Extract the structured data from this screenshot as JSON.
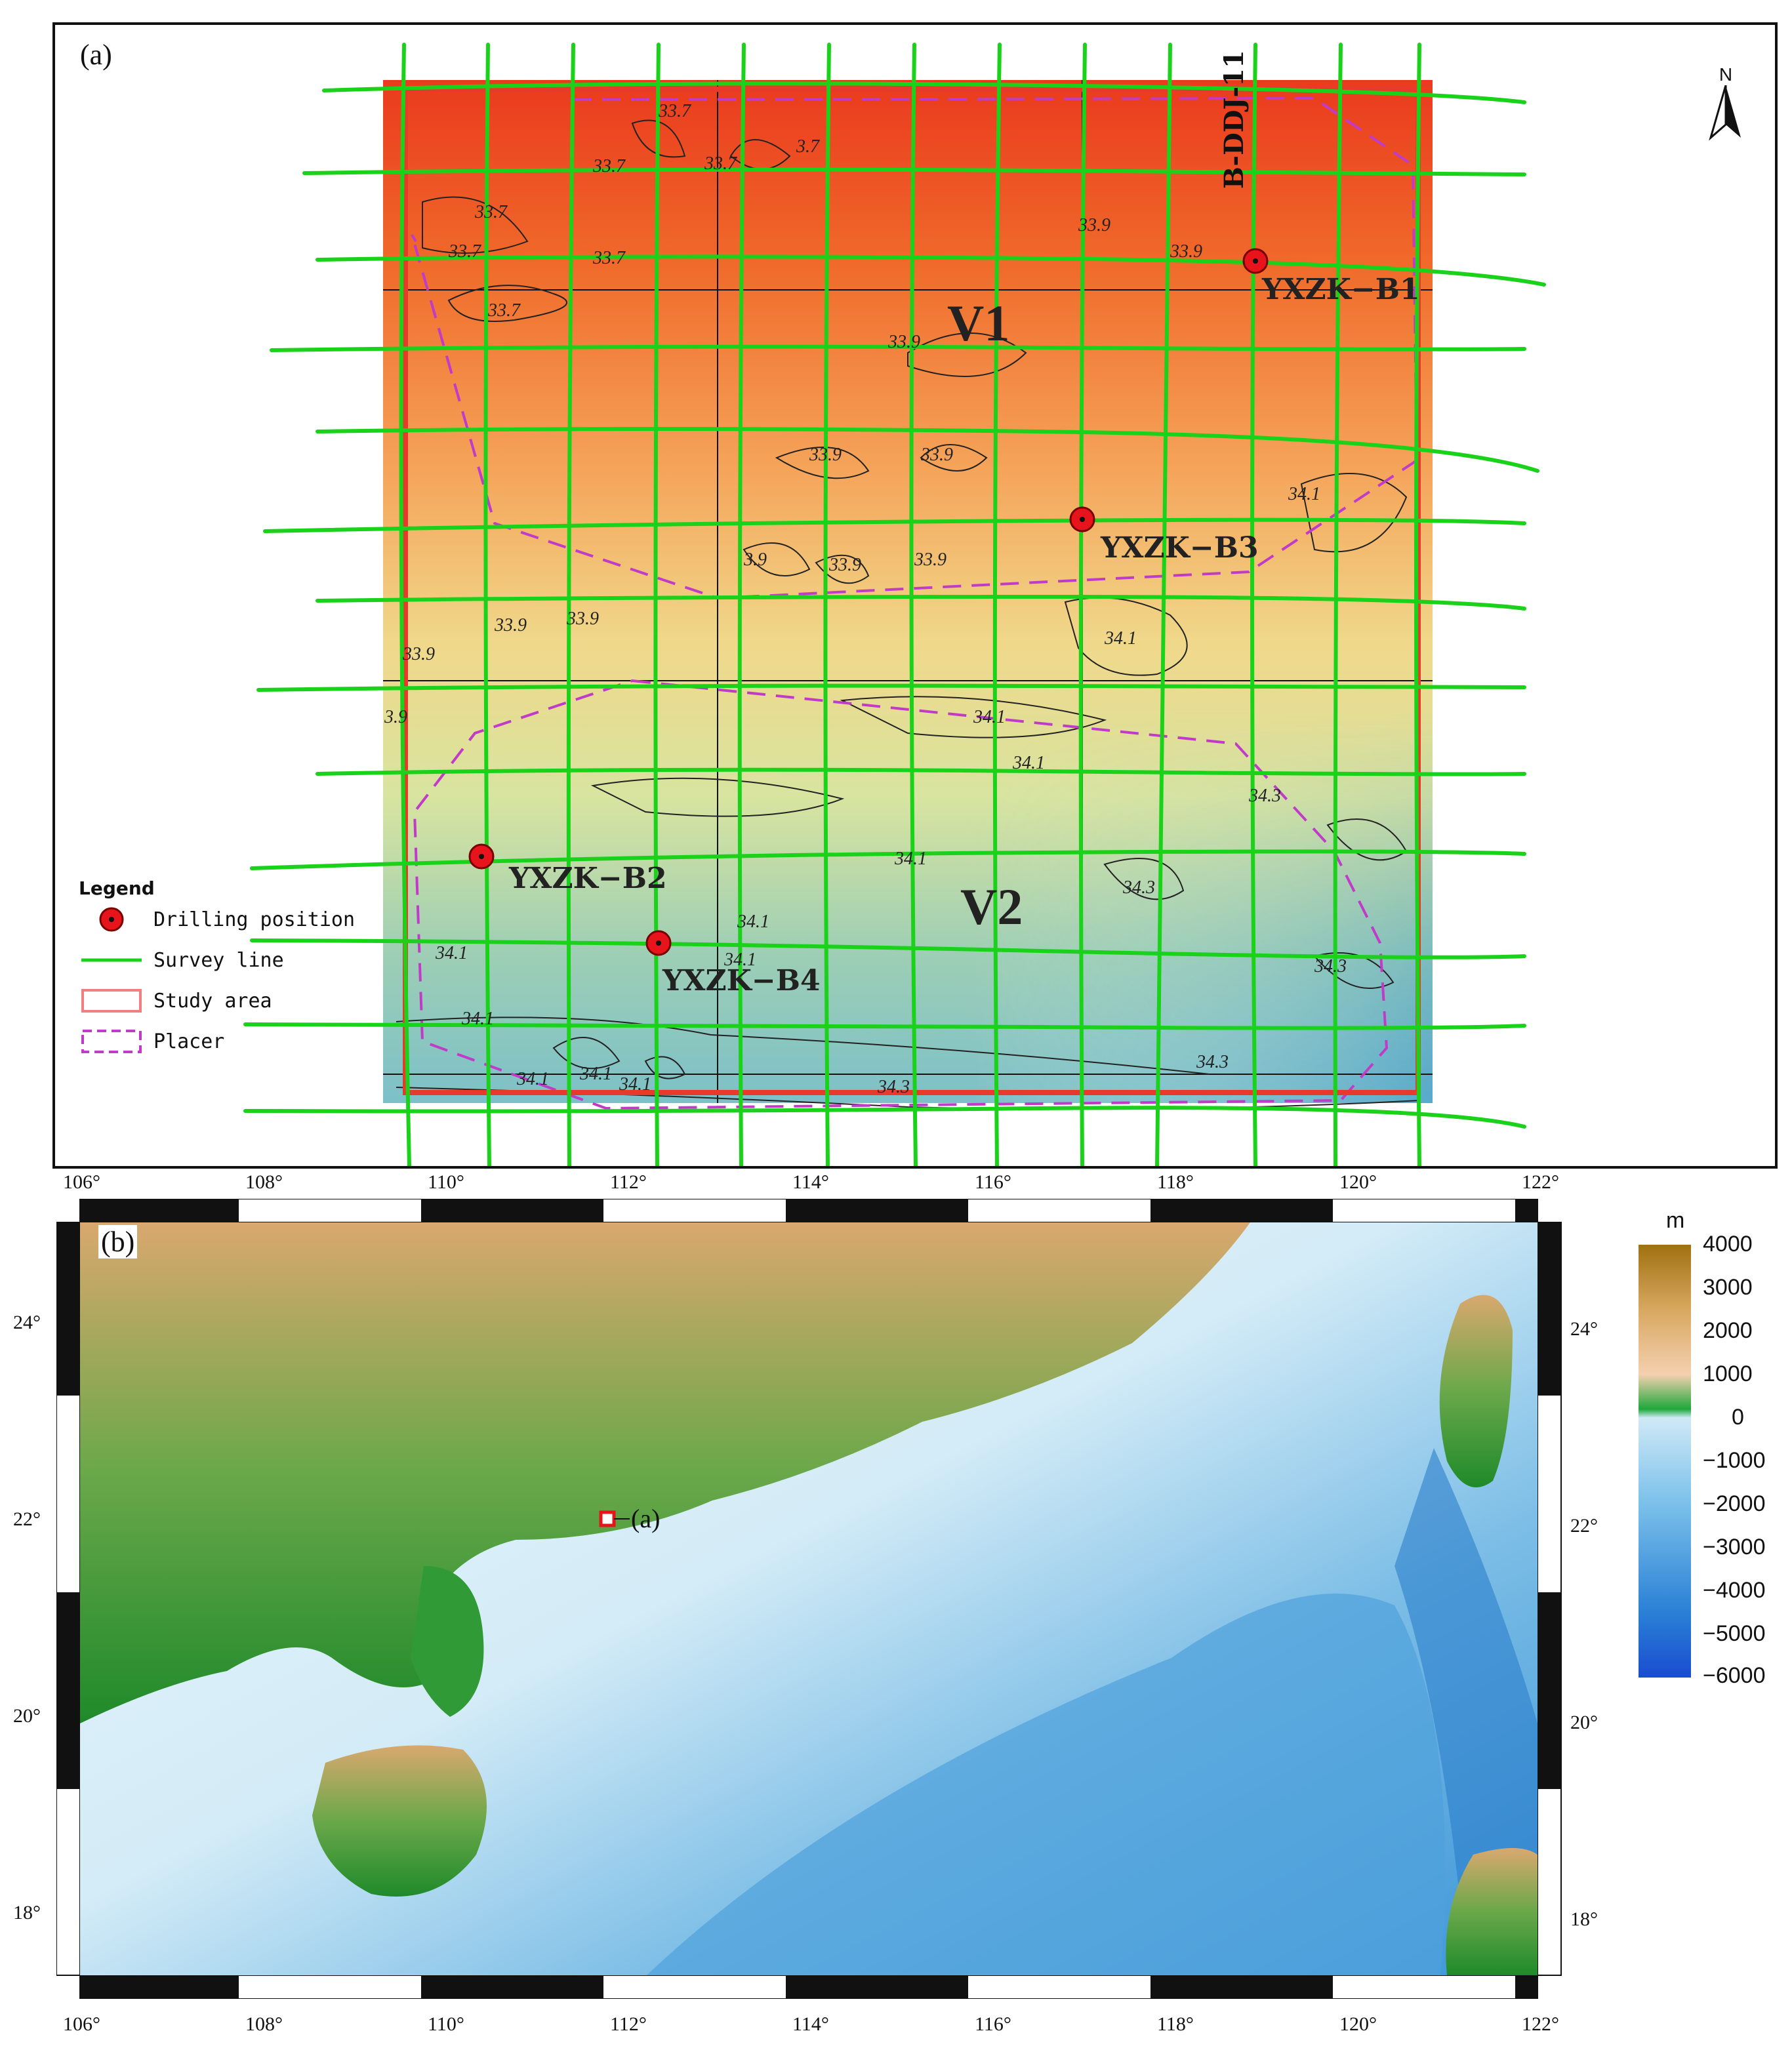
{
  "panel_a": {
    "label": "(a)",
    "north_label": "N",
    "vertical_line_label": "B-DDJ-11",
    "zones": [
      "V1",
      "V2"
    ],
    "drilling": [
      {
        "name": "YXZK−B1"
      },
      {
        "name": "YXZK−B2"
      },
      {
        "name": "YXZK−B3"
      },
      {
        "name": "YXZK−B4"
      }
    ],
    "contour_values": [
      "33.7",
      "33.7",
      "3.7",
      "33.7",
      "33.7",
      "33.7",
      "33.7",
      "33.7",
      "33.9",
      "33.9",
      "33.9",
      "33.9",
      "33.9",
      "3.9",
      "33.9",
      "33.9",
      "33.9",
      "33.9",
      "33.9",
      "3.9",
      "34.1",
      "34.1",
      "34.1",
      "34.1",
      "34.3",
      "34.3",
      "34.1",
      "34.1",
      "34.1",
      "34.1",
      "34.1",
      "34.1",
      "34.3",
      "34.3",
      "34.3",
      "34.1",
      "34.1"
    ],
    "legend": {
      "title": "Legend",
      "items": [
        {
          "label": "Drilling position",
          "color": "#e8141b"
        },
        {
          "label": "Survey line",
          "color": "#1bd21b"
        },
        {
          "label": "Study area",
          "color": "#f08080"
        },
        {
          "label": "Placer",
          "color": "#c03cc8"
        }
      ]
    }
  },
  "panel_b": {
    "label": "(b)",
    "index_label": "(a)",
    "lon_ticks": [
      "106°",
      "108°",
      "110°",
      "112°",
      "114°",
      "116°",
      "118°",
      "120°",
      "122°"
    ],
    "lat_ticks": [
      "24°",
      "22°",
      "20°",
      "18°"
    ],
    "colorbar": {
      "unit": "m",
      "labels": [
        "4000",
        "3000",
        "2000",
        "1000",
        "0",
        "−1000",
        "−2000",
        "−3000",
        "−4000",
        "−5000",
        "−6000"
      ]
    }
  },
  "top_lon_ticks": [
    "106°",
    "108°",
    "110°",
    "112°",
    "114°",
    "116°",
    "118°",
    "120°",
    "122°"
  ]
}
